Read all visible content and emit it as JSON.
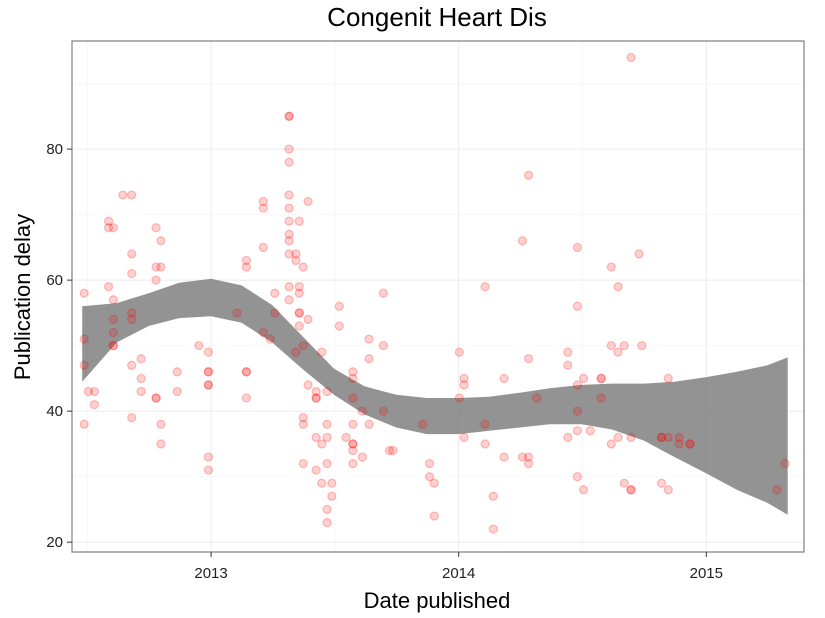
{
  "chart_data": {
    "type": "scatter",
    "title": "Congenit Heart Dis",
    "xlabel": "Date published",
    "ylabel": "Publication delay",
    "x_range": [
      "2012-06-10",
      "2015-05-25"
    ],
    "y_range": [
      18.5,
      96.5
    ],
    "x_ticks": [
      {
        "date": "2013-01-01",
        "label": "2013"
      },
      {
        "date": "2014-01-01",
        "label": "2014"
      },
      {
        "date": "2015-01-01",
        "label": "2015"
      }
    ],
    "y_ticks": [
      {
        "value": 20,
        "label": "20"
      },
      {
        "value": 40,
        "label": "40"
      },
      {
        "value": 60,
        "label": "60"
      },
      {
        "value": 80,
        "label": "80"
      }
    ],
    "grid": true,
    "point_color": "#ff0000",
    "point_opacity": 0.18,
    "smooth_band_color": "#808080",
    "points": [
      {
        "date": "2012-06-28",
        "delay": 58
      },
      {
        "date": "2012-06-28",
        "delay": 51
      },
      {
        "date": "2012-06-28",
        "delay": 47
      },
      {
        "date": "2012-06-28",
        "delay": 38
      },
      {
        "date": "2012-07-04",
        "delay": 43
      },
      {
        "date": "2012-07-13",
        "delay": 43
      },
      {
        "date": "2012-07-13",
        "delay": 41
      },
      {
        "date": "2012-08-03",
        "delay": 69
      },
      {
        "date": "2012-08-03",
        "delay": 68
      },
      {
        "date": "2012-08-03",
        "delay": 59
      },
      {
        "date": "2012-08-10",
        "delay": 68
      },
      {
        "date": "2012-08-10",
        "delay": 57
      },
      {
        "date": "2012-08-10",
        "delay": 54
      },
      {
        "date": "2012-08-10",
        "delay": 52
      },
      {
        "date": "2012-08-10",
        "delay": 50
      },
      {
        "date": "2012-08-10",
        "delay": 50
      },
      {
        "date": "2012-08-24",
        "delay": 73
      },
      {
        "date": "2012-09-06",
        "delay": 73
      },
      {
        "date": "2012-09-06",
        "delay": 64
      },
      {
        "date": "2012-09-06",
        "delay": 61
      },
      {
        "date": "2012-09-06",
        "delay": 55
      },
      {
        "date": "2012-09-06",
        "delay": 54
      },
      {
        "date": "2012-09-06",
        "delay": 47
      },
      {
        "date": "2012-09-06",
        "delay": 39
      },
      {
        "date": "2012-09-20",
        "delay": 48
      },
      {
        "date": "2012-09-20",
        "delay": 45
      },
      {
        "date": "2012-09-20",
        "delay": 43
      },
      {
        "date": "2012-10-12",
        "delay": 68
      },
      {
        "date": "2012-10-12",
        "delay": 62
      },
      {
        "date": "2012-10-12",
        "delay": 60
      },
      {
        "date": "2012-10-12",
        "delay": 42
      },
      {
        "date": "2012-10-12",
        "delay": 42
      },
      {
        "date": "2012-10-19",
        "delay": 66
      },
      {
        "date": "2012-10-19",
        "delay": 62
      },
      {
        "date": "2012-10-19",
        "delay": 38
      },
      {
        "date": "2012-10-19",
        "delay": 35
      },
      {
        "date": "2012-11-12",
        "delay": 46
      },
      {
        "date": "2012-11-12",
        "delay": 43
      },
      {
        "date": "2012-12-14",
        "delay": 50
      },
      {
        "date": "2012-12-28",
        "delay": 49
      },
      {
        "date": "2012-12-28",
        "delay": 46
      },
      {
        "date": "2012-12-28",
        "delay": 46
      },
      {
        "date": "2012-12-28",
        "delay": 44
      },
      {
        "date": "2012-12-28",
        "delay": 44
      },
      {
        "date": "2012-12-28",
        "delay": 33
      },
      {
        "date": "2012-12-28",
        "delay": 31
      },
      {
        "date": "2013-02-08",
        "delay": 55
      },
      {
        "date": "2013-02-22",
        "delay": 63
      },
      {
        "date": "2013-02-22",
        "delay": 62
      },
      {
        "date": "2013-02-22",
        "delay": 46
      },
      {
        "date": "2013-02-22",
        "delay": 46
      },
      {
        "date": "2013-02-22",
        "delay": 42
      },
      {
        "date": "2013-03-19",
        "delay": 72
      },
      {
        "date": "2013-03-19",
        "delay": 71
      },
      {
        "date": "2013-03-19",
        "delay": 65
      },
      {
        "date": "2013-03-19",
        "delay": 52
      },
      {
        "date": "2013-03-29",
        "delay": 51
      },
      {
        "date": "2013-04-05",
        "delay": 58
      },
      {
        "date": "2013-04-05",
        "delay": 55
      },
      {
        "date": "2013-04-26",
        "delay": 85
      },
      {
        "date": "2013-04-26",
        "delay": 85
      },
      {
        "date": "2013-04-26",
        "delay": 80
      },
      {
        "date": "2013-04-26",
        "delay": 78
      },
      {
        "date": "2013-04-26",
        "delay": 73
      },
      {
        "date": "2013-04-26",
        "delay": 71
      },
      {
        "date": "2013-04-26",
        "delay": 69
      },
      {
        "date": "2013-04-26",
        "delay": 67
      },
      {
        "date": "2013-04-26",
        "delay": 66
      },
      {
        "date": "2013-04-26",
        "delay": 64
      },
      {
        "date": "2013-04-26",
        "delay": 59
      },
      {
        "date": "2013-04-26",
        "delay": 57
      },
      {
        "date": "2013-05-06",
        "delay": 64
      },
      {
        "date": "2013-05-06",
        "delay": 63
      },
      {
        "date": "2013-05-06",
        "delay": 49
      },
      {
        "date": "2013-05-11",
        "delay": 69
      },
      {
        "date": "2013-05-11",
        "delay": 59
      },
      {
        "date": "2013-05-11",
        "delay": 58
      },
      {
        "date": "2013-05-11",
        "delay": 55
      },
      {
        "date": "2013-05-11",
        "delay": 55
      },
      {
        "date": "2013-05-11",
        "delay": 53
      },
      {
        "date": "2013-05-17",
        "delay": 62
      },
      {
        "date": "2013-05-17",
        "delay": 50
      },
      {
        "date": "2013-05-17",
        "delay": 39
      },
      {
        "date": "2013-05-17",
        "delay": 38
      },
      {
        "date": "2013-05-17",
        "delay": 32
      },
      {
        "date": "2013-05-24",
        "delay": 72
      },
      {
        "date": "2013-05-24",
        "delay": 54
      },
      {
        "date": "2013-05-24",
        "delay": 44
      },
      {
        "date": "2013-06-05",
        "delay": 43
      },
      {
        "date": "2013-06-05",
        "delay": 42
      },
      {
        "date": "2013-06-05",
        "delay": 42
      },
      {
        "date": "2013-06-05",
        "delay": 36
      },
      {
        "date": "2013-06-05",
        "delay": 31
      },
      {
        "date": "2013-06-13",
        "delay": 49
      },
      {
        "date": "2013-06-13",
        "delay": 35
      },
      {
        "date": "2013-06-13",
        "delay": 29
      },
      {
        "date": "2013-06-21",
        "delay": 43
      },
      {
        "date": "2013-06-21",
        "delay": 38
      },
      {
        "date": "2013-06-21",
        "delay": 36
      },
      {
        "date": "2013-06-21",
        "delay": 32
      },
      {
        "date": "2013-06-21",
        "delay": 25
      },
      {
        "date": "2013-06-21",
        "delay": 23
      },
      {
        "date": "2013-06-28",
        "delay": 29
      },
      {
        "date": "2013-06-28",
        "delay": 27
      },
      {
        "date": "2013-07-09",
        "delay": 56
      },
      {
        "date": "2013-07-09",
        "delay": 53
      },
      {
        "date": "2013-07-19",
        "delay": 36
      },
      {
        "date": "2013-07-29",
        "delay": 46
      },
      {
        "date": "2013-07-29",
        "delay": 45
      },
      {
        "date": "2013-07-29",
        "delay": 42
      },
      {
        "date": "2013-07-29",
        "delay": 38
      },
      {
        "date": "2013-07-29",
        "delay": 35
      },
      {
        "date": "2013-07-29",
        "delay": 35
      },
      {
        "date": "2013-07-29",
        "delay": 34
      },
      {
        "date": "2013-07-29",
        "delay": 32
      },
      {
        "date": "2013-08-12",
        "delay": 40
      },
      {
        "date": "2013-08-12",
        "delay": 33
      },
      {
        "date": "2013-08-22",
        "delay": 51
      },
      {
        "date": "2013-08-22",
        "delay": 48
      },
      {
        "date": "2013-08-22",
        "delay": 38
      },
      {
        "date": "2013-09-12",
        "delay": 58
      },
      {
        "date": "2013-09-12",
        "delay": 50
      },
      {
        "date": "2013-09-12",
        "delay": 40
      },
      {
        "date": "2013-09-21",
        "delay": 34
      },
      {
        "date": "2013-09-26",
        "delay": 34
      },
      {
        "date": "2013-11-09",
        "delay": 38
      },
      {
        "date": "2013-11-19",
        "delay": 32
      },
      {
        "date": "2013-11-19",
        "delay": 30
      },
      {
        "date": "2013-11-26",
        "delay": 29
      },
      {
        "date": "2013-11-26",
        "delay": 24
      },
      {
        "date": "2014-01-02",
        "delay": 49
      },
      {
        "date": "2014-01-02",
        "delay": 42
      },
      {
        "date": "2014-01-09",
        "delay": 45
      },
      {
        "date": "2014-01-09",
        "delay": 44
      },
      {
        "date": "2014-01-09",
        "delay": 36
      },
      {
        "date": "2014-02-09",
        "delay": 59
      },
      {
        "date": "2014-02-09",
        "delay": 38
      },
      {
        "date": "2014-02-09",
        "delay": 35
      },
      {
        "date": "2014-02-21",
        "delay": 27
      },
      {
        "date": "2014-02-21",
        "delay": 22
      },
      {
        "date": "2014-03-09",
        "delay": 45
      },
      {
        "date": "2014-03-09",
        "delay": 33
      },
      {
        "date": "2014-04-05",
        "delay": 66
      },
      {
        "date": "2014-04-05",
        "delay": 33
      },
      {
        "date": "2014-04-14",
        "delay": 76
      },
      {
        "date": "2014-04-14",
        "delay": 48
      },
      {
        "date": "2014-04-14",
        "delay": 33
      },
      {
        "date": "2014-04-14",
        "delay": 32
      },
      {
        "date": "2014-04-26",
        "delay": 42
      },
      {
        "date": "2014-06-11",
        "delay": 49
      },
      {
        "date": "2014-06-11",
        "delay": 47
      },
      {
        "date": "2014-06-11",
        "delay": 36
      },
      {
        "date": "2014-06-25",
        "delay": 65
      },
      {
        "date": "2014-06-25",
        "delay": 56
      },
      {
        "date": "2014-06-25",
        "delay": 44
      },
      {
        "date": "2014-06-25",
        "delay": 40
      },
      {
        "date": "2014-06-25",
        "delay": 37
      },
      {
        "date": "2014-06-25",
        "delay": 30
      },
      {
        "date": "2014-07-04",
        "delay": 45
      },
      {
        "date": "2014-07-04",
        "delay": 28
      },
      {
        "date": "2014-07-14",
        "delay": 37
      },
      {
        "date": "2014-07-30",
        "delay": 45
      },
      {
        "date": "2014-07-30",
        "delay": 45
      },
      {
        "date": "2014-07-30",
        "delay": 42
      },
      {
        "date": "2014-08-14",
        "delay": 62
      },
      {
        "date": "2014-08-14",
        "delay": 50
      },
      {
        "date": "2014-08-14",
        "delay": 35
      },
      {
        "date": "2014-08-24",
        "delay": 59
      },
      {
        "date": "2014-08-24",
        "delay": 49
      },
      {
        "date": "2014-08-24",
        "delay": 36
      },
      {
        "date": "2014-09-02",
        "delay": 50
      },
      {
        "date": "2014-09-02",
        "delay": 29
      },
      {
        "date": "2014-09-12",
        "delay": 94
      },
      {
        "date": "2014-09-12",
        "delay": 36
      },
      {
        "date": "2014-09-12",
        "delay": 28
      },
      {
        "date": "2014-09-12",
        "delay": 28
      },
      {
        "date": "2014-09-24",
        "delay": 64
      },
      {
        "date": "2014-09-28",
        "delay": 50
      },
      {
        "date": "2014-10-27",
        "delay": 36
      },
      {
        "date": "2014-10-27",
        "delay": 36
      },
      {
        "date": "2014-10-27",
        "delay": 29
      },
      {
        "date": "2014-11-06",
        "delay": 45
      },
      {
        "date": "2014-11-06",
        "delay": 36
      },
      {
        "date": "2014-11-06",
        "delay": 28
      },
      {
        "date": "2014-11-22",
        "delay": 36
      },
      {
        "date": "2014-11-22",
        "delay": 35
      },
      {
        "date": "2014-12-08",
        "delay": 35
      },
      {
        "date": "2014-12-08",
        "delay": 35
      },
      {
        "date": "2015-04-15",
        "delay": 28
      },
      {
        "date": "2015-04-27",
        "delay": 32
      }
    ],
    "smooth_band": [
      {
        "date": "2012-06-25",
        "lower": 44.5,
        "upper": 56
      },
      {
        "date": "2012-08-15",
        "lower": 50.5,
        "upper": 56.5
      },
      {
        "date": "2012-10-01",
        "lower": 53,
        "upper": 58
      },
      {
        "date": "2012-11-15",
        "lower": 54.2,
        "upper": 59.6
      },
      {
        "date": "2013-01-01",
        "lower": 54.5,
        "upper": 60.2
      },
      {
        "date": "2013-02-15",
        "lower": 53.5,
        "upper": 59.2
      },
      {
        "date": "2013-04-01",
        "lower": 50.5,
        "upper": 56.2
      },
      {
        "date": "2013-05-15",
        "lower": 46.5,
        "upper": 51.5
      },
      {
        "date": "2013-07-01",
        "lower": 42.5,
        "upper": 46.5
      },
      {
        "date": "2013-08-15",
        "lower": 39.5,
        "upper": 43.8
      },
      {
        "date": "2013-10-01",
        "lower": 37.5,
        "upper": 42.5
      },
      {
        "date": "2013-11-15",
        "lower": 36.5,
        "upper": 42
      },
      {
        "date": "2014-01-01",
        "lower": 36.5,
        "upper": 42
      },
      {
        "date": "2014-02-15",
        "lower": 37,
        "upper": 42.2
      },
      {
        "date": "2014-04-01",
        "lower": 37.5,
        "upper": 42.8
      },
      {
        "date": "2014-05-15",
        "lower": 38,
        "upper": 43.5
      },
      {
        "date": "2014-07-01",
        "lower": 38,
        "upper": 44
      },
      {
        "date": "2014-08-15",
        "lower": 37.2,
        "upper": 44.2
      },
      {
        "date": "2014-10-01",
        "lower": 35.5,
        "upper": 44.2
      },
      {
        "date": "2014-11-15",
        "lower": 33,
        "upper": 44.5
      },
      {
        "date": "2015-01-01",
        "lower": 30.5,
        "upper": 45.2
      },
      {
        "date": "2015-02-15",
        "lower": 28,
        "upper": 46
      },
      {
        "date": "2015-04-01",
        "lower": 26,
        "upper": 47
      },
      {
        "date": "2015-05-01",
        "lower": 24.2,
        "upper": 48.2
      }
    ]
  }
}
